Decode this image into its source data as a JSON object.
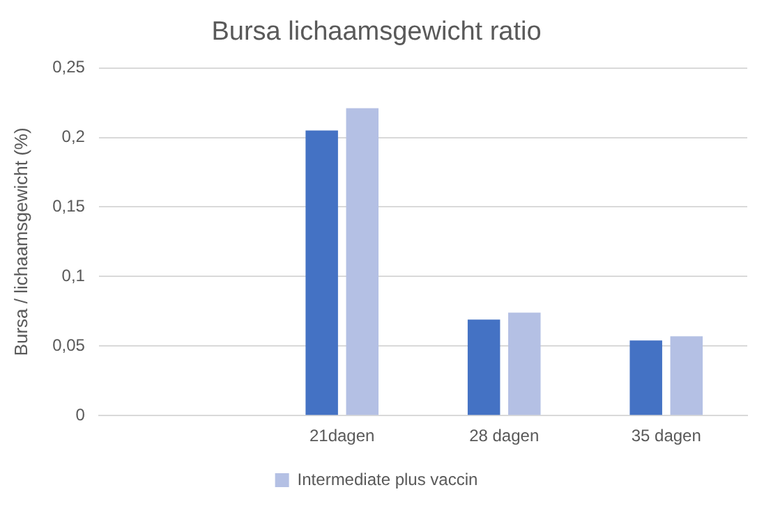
{
  "chart_data": {
    "type": "bar",
    "title": "Bursa lichaamsgewicht ratio",
    "ylabel": "Bursa / lichaamsgewicht (%)",
    "categories": [
      null,
      "21dagen",
      "28 dagen",
      "35 dagen"
    ],
    "series": [
      {
        "color": "#4472c4",
        "values": [
          null,
          0.205,
          0.069,
          0.054
        ]
      },
      {
        "name": "Intermediate plus vaccin",
        "color": "#b4c0e4",
        "values": [
          null,
          0.221,
          0.074,
          0.057
        ]
      }
    ],
    "ylim": [
      0,
      0.25
    ],
    "yticks": [
      0,
      {
        "value": 0.05,
        "label": "0,05"
      },
      {
        "value": 0.1,
        "label": "0,1"
      },
      {
        "value": 0.15,
        "label": "0,15"
      },
      {
        "value": 0.2,
        "label": "0,2"
      },
      {
        "value": 0.25,
        "label": "0,25"
      }
    ],
    "grid": "y",
    "legend": "bottom"
  }
}
